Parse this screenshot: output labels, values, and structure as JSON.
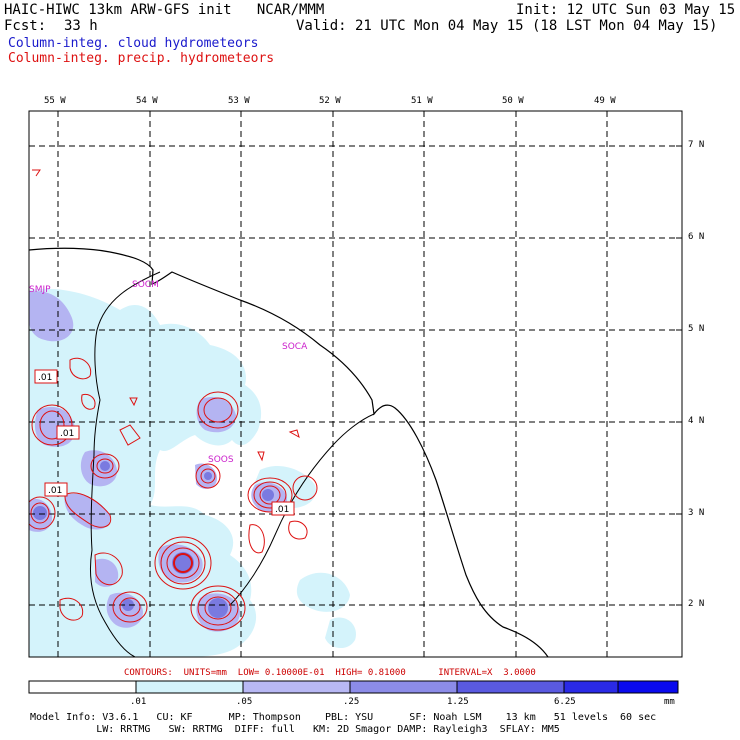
{
  "header": {
    "title_left": "HAIC-HIWC 13km ARW-GFS init   NCAR/MMM",
    "init": "Init: 12 UTC Sun 03 May 15",
    "fcst_label": "Fcst:",
    "fcst_value": "33 h",
    "valid": "Valid: 21 UTC Mon 04 May 15 (18 LST Mon 04 May 15)",
    "field1": "Column-integ. cloud hydrometeors",
    "field2": "Column-integ. precip. hydrometeors",
    "field1_color": "#1a1acc",
    "field2_color": "#dd1111"
  },
  "map": {
    "lon_labels": [
      "55 W",
      "54 W",
      "53 W",
      "52 W",
      "51 W",
      "50 W",
      "49 W"
    ],
    "lat_labels": [
      "7 N",
      "6 N",
      "5 N",
      "4 N",
      "3 N",
      "2 N"
    ],
    "stations": [
      "SMJP",
      "SOCM",
      "SOCA",
      "SOOS"
    ],
    "contour_labels": [
      ".01",
      ".01",
      ".01",
      ".01"
    ],
    "cloud_shade_colors": [
      "#d4f3fb",
      "#b4b4f2",
      "#8a8ae4",
      "#5a5ad8"
    ],
    "precip_contour_color": "#dd1111",
    "station_color": "#cc22cc"
  },
  "contours": {
    "text": "CONTOURS:  UNITS=mm  LOW= 0.10000E-01  HIGH= 0.81000      INTERVAL=X  3.0000"
  },
  "colorbar": {
    "labels": [
      ".01",
      ".05",
      ".25",
      "1.25",
      "6.25",
      "mm"
    ],
    "colors": [
      "#ffffff",
      "#d4f3fb",
      "#b8b8f4",
      "#8c8ce8",
      "#5a5ae0",
      "#2a2ae6",
      "#0a0aee"
    ]
  },
  "model_info": {
    "line1": "Model Info: V3.6.1   CU: KF      MP: Thompson    PBL: YSU      SF: Noah LSM    13 km   51 levels  60 sec",
    "line2": "           LW: RRTMG   SW: RRTMG  DIFF: full   KM: 2D Smagor DAMP: Rayleigh3  SFLAY: MM5"
  }
}
